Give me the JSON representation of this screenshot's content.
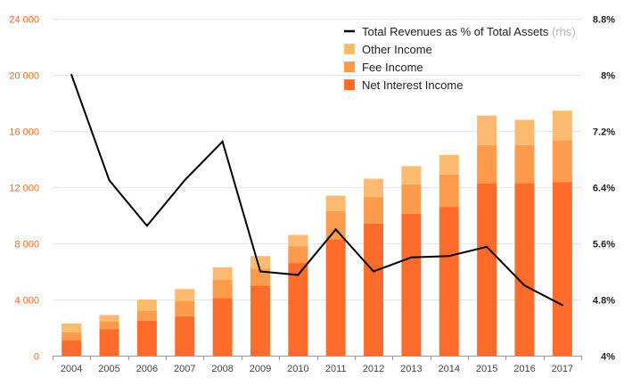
{
  "chart_data": {
    "type": "bar",
    "stacked": true,
    "title": "",
    "categories": [
      "2004",
      "2005",
      "2006",
      "2007",
      "2008",
      "2009",
      "2010",
      "2011",
      "2012",
      "2013",
      "2014",
      "2015",
      "2016",
      "2017"
    ],
    "series": [
      {
        "name": "Net Interest Income",
        "type": "bar",
        "color": "#fe6c2c",
        "values": [
          1100,
          1900,
          2500,
          2800,
          4100,
          5000,
          6600,
          8300,
          9400,
          10100,
          10600,
          12300,
          12300,
          12350
        ]
      },
      {
        "name": "Fee Income",
        "type": "bar",
        "color": "#fc9b4c",
        "values": [
          550,
          550,
          700,
          1100,
          1300,
          1200,
          1200,
          2000,
          1900,
          2100,
          2300,
          2700,
          2700,
          3000
        ]
      },
      {
        "name": "Other Income",
        "type": "bar",
        "color": "#fdbb72",
        "values": [
          650,
          450,
          800,
          850,
          900,
          900,
          800,
          1100,
          1300,
          1300,
          1400,
          2100,
          1800,
          2100
        ]
      },
      {
        "name": "Total Revenues as % of Total Assets",
        "type": "line",
        "axis": "right",
        "color": "#000000",
        "values": [
          8.0,
          6.5,
          5.85,
          6.5,
          7.05,
          5.2,
          5.15,
          5.8,
          5.2,
          5.4,
          5.42,
          5.55,
          5.0,
          4.72
        ]
      }
    ],
    "left_axis": {
      "ylim": [
        0,
        24000
      ],
      "ticks": [
        "0",
        "4 000",
        "8 000",
        "12 000",
        "16 000",
        "20 000",
        "24 000"
      ],
      "tick_values": [
        0,
        4000,
        8000,
        12000,
        16000,
        20000,
        24000
      ]
    },
    "right_axis": {
      "ylim": [
        4.0,
        8.8
      ],
      "ticks": [
        "4%",
        "4.8%",
        "5.6%",
        "6.4%",
        "7.2%",
        "8%",
        "8.8%"
      ],
      "tick_values": [
        4.0,
        4.8,
        5.6,
        6.4,
        7.2,
        8.0,
        8.8
      ]
    },
    "legend": {
      "position": "top-right",
      "items": [
        {
          "label": "Total Revenues as % of Total Assets",
          "suffix": "(rhs)",
          "kind": "line",
          "color": "#000000"
        },
        {
          "label": "Other Income",
          "kind": "box",
          "color": "#fdbb72"
        },
        {
          "label": "Fee Income",
          "kind": "box",
          "color": "#fc9b4c"
        },
        {
          "label": "Net Interest Income",
          "kind": "box",
          "color": "#fe6c2c"
        }
      ]
    },
    "grid": true
  }
}
